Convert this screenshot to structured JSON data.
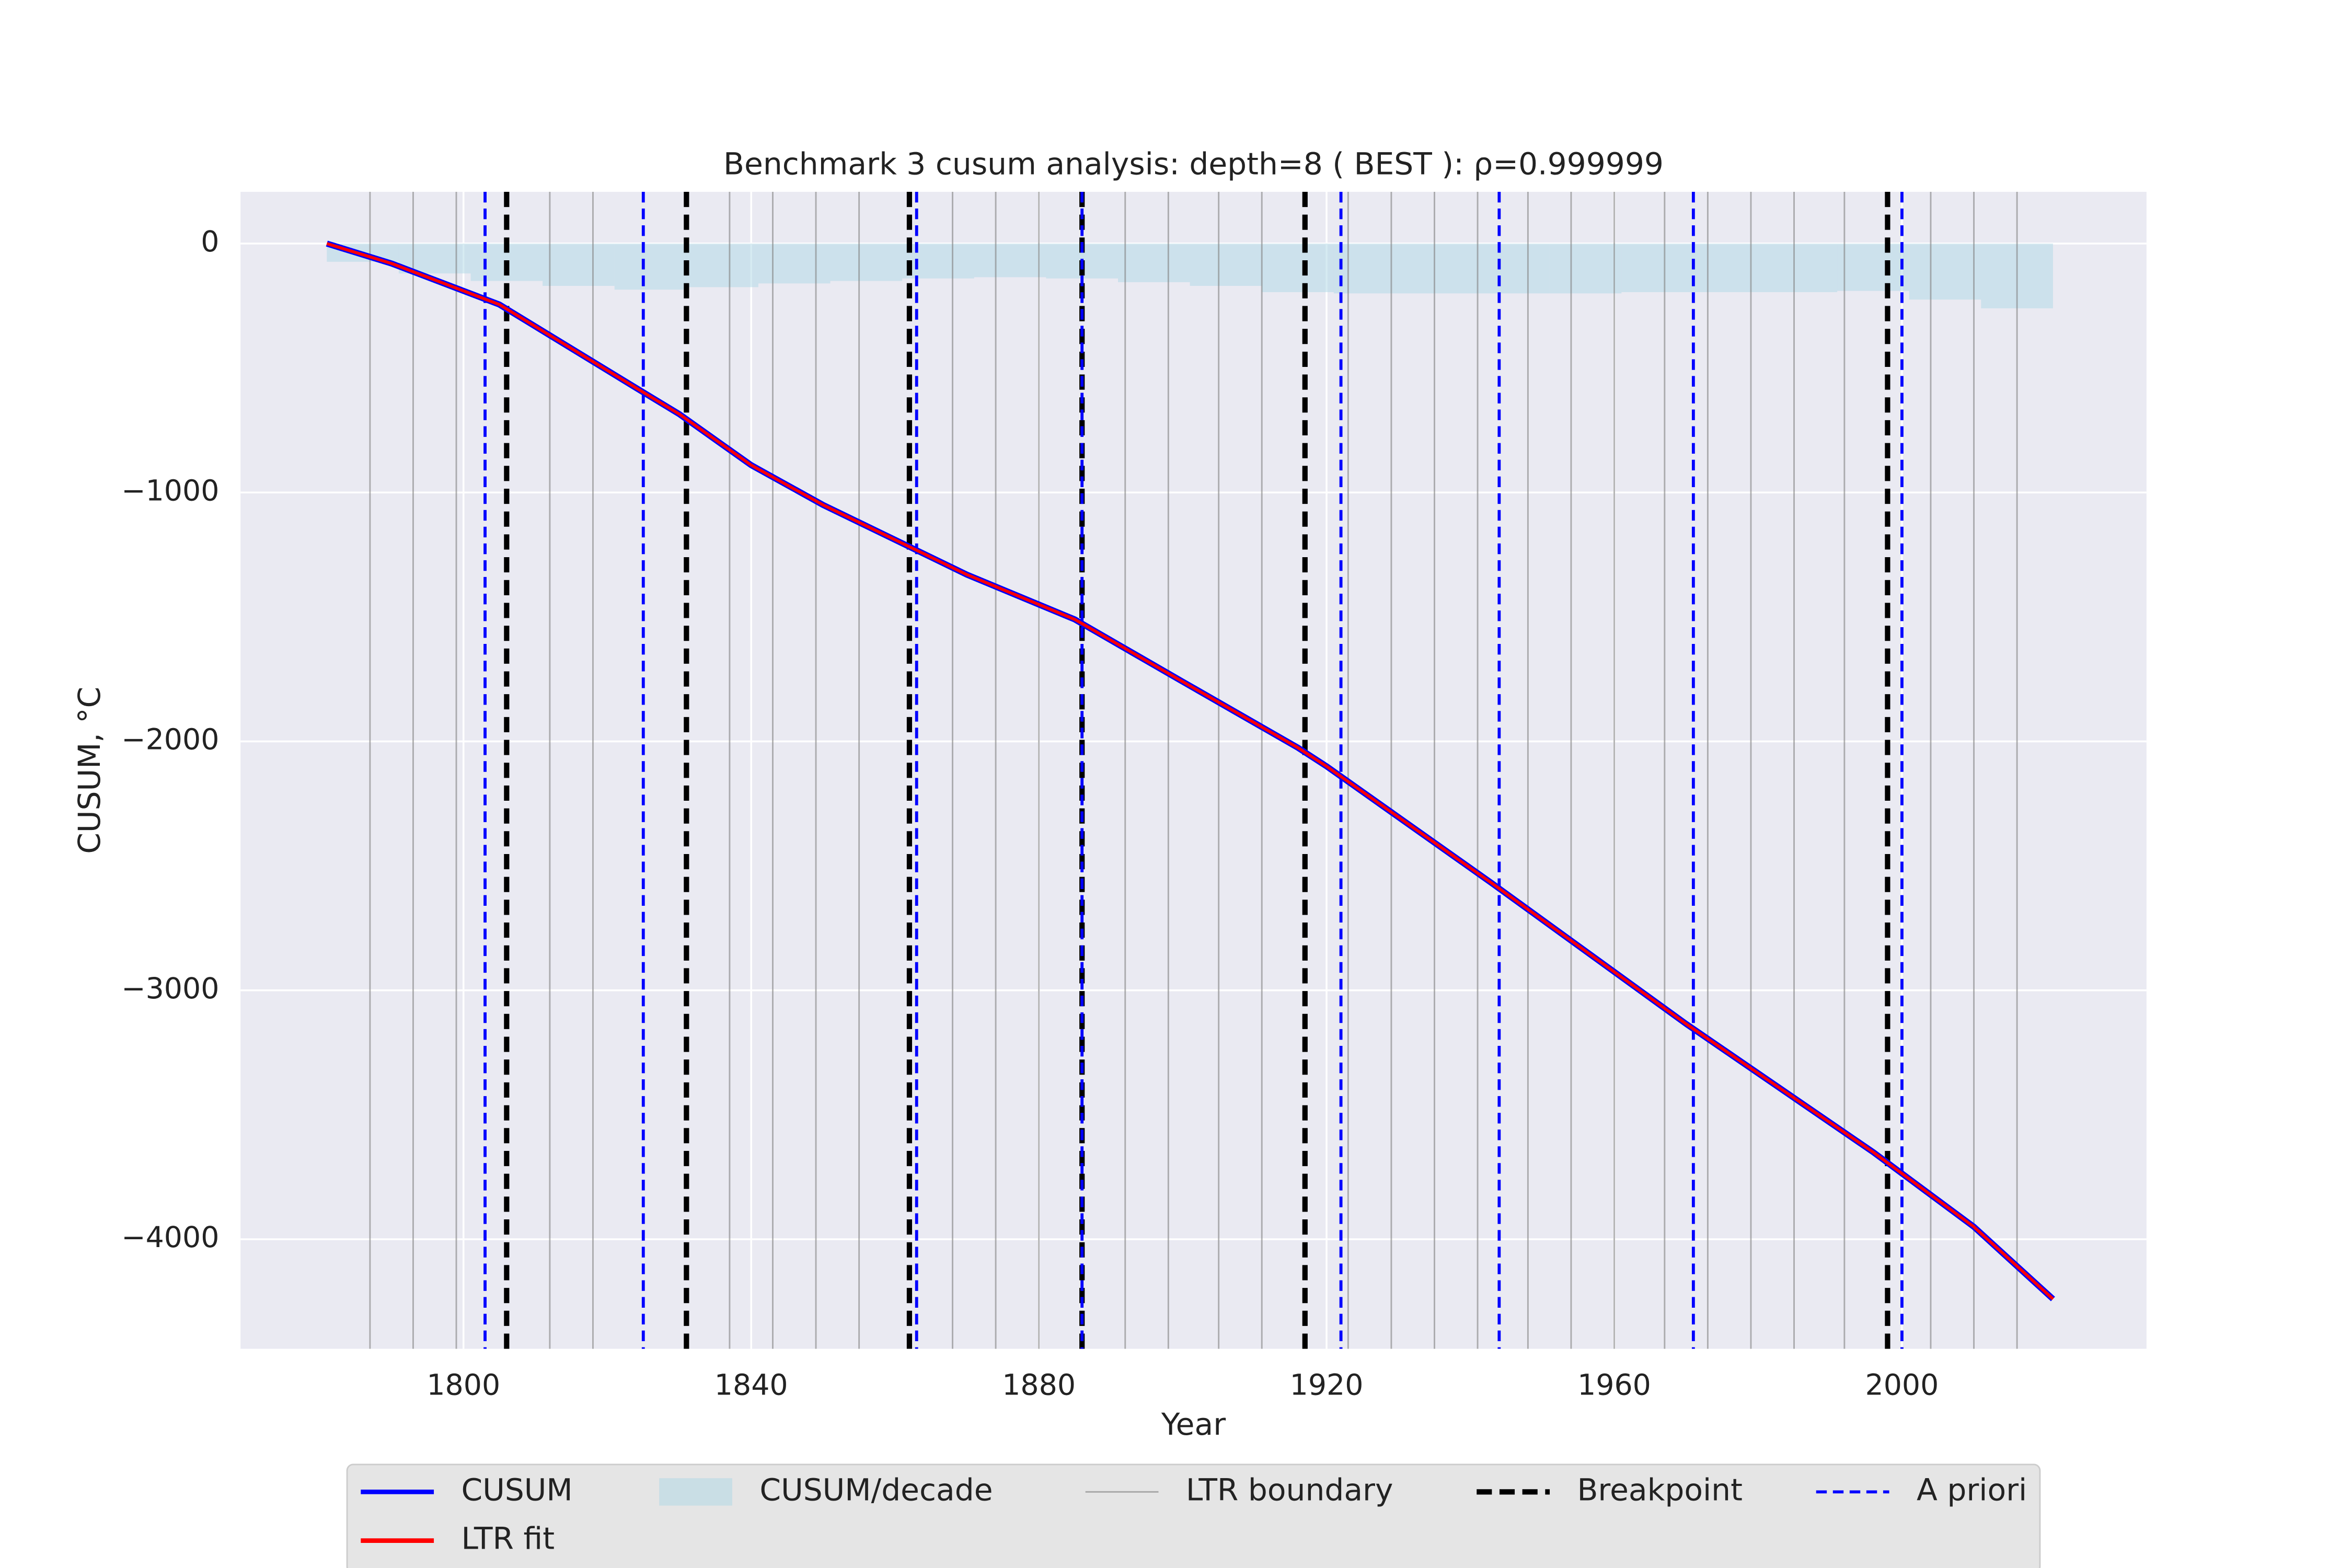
{
  "chart_data": {
    "type": "line",
    "title": "Benchmark 3 cusum analysis: depth=8 ( BEST ): ρ=0.999999",
    "x_label": "Year",
    "y_label": "CUSUM, °C",
    "xlim": [
      1769,
      2034
    ],
    "ylim": [
      -4440,
      208
    ],
    "xticks": [
      1800,
      1840,
      1880,
      1920,
      1960,
      2000
    ],
    "yticks": [
      0,
      {
        "value": -1000,
        "label": "−1000"
      },
      {
        "value": -2000,
        "label": "−2000"
      },
      {
        "value": -3000,
        "label": "−3000"
      },
      {
        "value": -4000,
        "label": "−4000"
      }
    ],
    "grid": true,
    "series": [
      {
        "name": "CUSUM",
        "color": "#0000ff",
        "x": [
          1781,
          1790,
          1805,
          1824,
          1830,
          1840,
          1850,
          1860,
          1870,
          1885,
          1900,
          1916,
          1920,
          1943,
          1970,
          1996,
          2010,
          2021
        ],
        "values": [
          0,
          -80,
          -245,
          -580,
          -685,
          -890,
          -1050,
          -1190,
          -1330,
          -1510,
          -1760,
          -2025,
          -2100,
          -2570,
          -3135,
          -3650,
          -3950,
          -4240
        ]
      },
      {
        "name": "LTR fit",
        "color": "#ff0000",
        "x": [
          1781,
          1790,
          1805,
          1824,
          1830,
          1840,
          1850,
          1860,
          1870,
          1885,
          1900,
          1916,
          1920,
          1943,
          1970,
          1996,
          2010,
          2021
        ],
        "values": [
          0,
          -80,
          -245,
          -580,
          -685,
          -890,
          -1050,
          -1190,
          -1330,
          -1510,
          -1760,
          -2025,
          -2100,
          -2570,
          -3135,
          -3650,
          -3950,
          -4240
        ]
      }
    ],
    "decade": {
      "name": "CUSUM/decade",
      "color": "#add8e6",
      "bins": [
        1781,
        1791,
        1801,
        1811,
        1821,
        1831,
        1841,
        1851,
        1861,
        1871,
        1881,
        1891,
        1901,
        1911,
        1921,
        1931,
        1941,
        1951,
        1961,
        1971,
        1981,
        1991,
        2001,
        2011,
        2021
      ],
      "values": [
        -73,
        -120,
        -150,
        -170,
        -185,
        -175,
        -160,
        -150,
        -140,
        -135,
        -140,
        -155,
        -170,
        -195,
        -200,
        -200,
        -200,
        -200,
        -195,
        -195,
        -195,
        -190,
        -225,
        -260
      ]
    },
    "vlines": [
      {
        "name": "LTR boundary",
        "color": "#808080",
        "dashed": false,
        "x": [
          1787,
          1793,
          1799,
          1812,
          1818,
          1837,
          1843,
          1849,
          1855,
          1868,
          1874,
          1880,
          1892,
          1898,
          1905,
          1911,
          1923,
          1929,
          1935,
          1941,
          1948,
          1954,
          1960,
          1967,
          1973,
          1979,
          1985,
          1992,
          2004,
          2010,
          2016
        ]
      },
      {
        "name": "Breakpoint",
        "color": "#000000",
        "dashed": true,
        "x": [
          1806,
          1831,
          1862,
          1886,
          1917,
          1998
        ]
      },
      {
        "name": "A priori",
        "color": "#0000ff",
        "dashed": true,
        "x": [
          1803,
          1825,
          1863,
          1886,
          1922,
          1944,
          1971,
          2000
        ]
      }
    ]
  }
}
